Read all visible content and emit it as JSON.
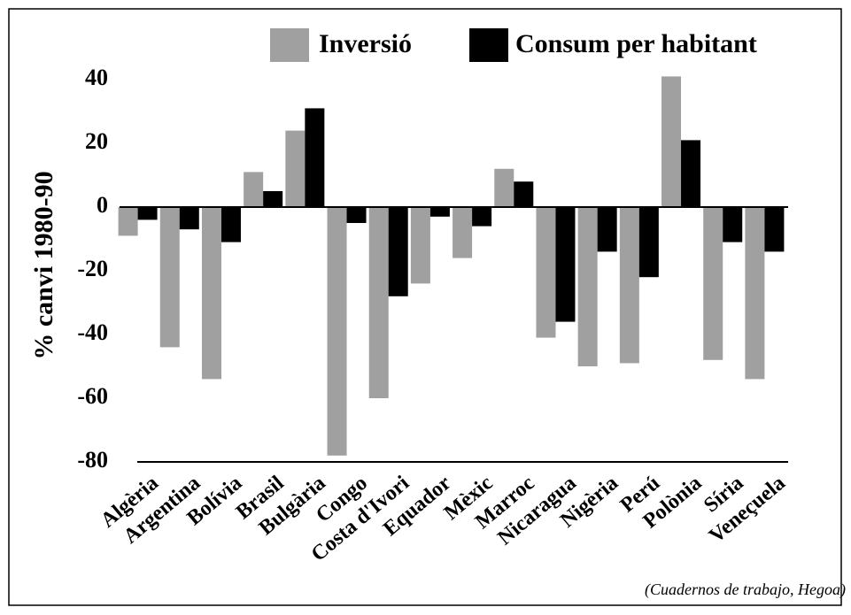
{
  "chart_data": {
    "type": "bar",
    "ylabel": "% canvi 1980-90",
    "source": "(Cuadernos de trabajo, Hegoa)",
    "categories": [
      "Algèria",
      "Argentina",
      "Bolívia",
      "Brasil",
      "Bulgària",
      "Congo",
      "Costa d'Ivori",
      "Equador",
      "Mèxic",
      "Marroc",
      "Nicaragua",
      "Nigèria",
      "Perú",
      "Polònia",
      "Síria",
      "Veneçuela"
    ],
    "series": [
      {
        "name": "Inversió",
        "color": "#a0a0a0",
        "values": [
          -9,
          -44,
          -54,
          11,
          24,
          -78,
          -60,
          -24,
          -16,
          12,
          -41,
          -50,
          -49,
          41,
          -48,
          -54
        ]
      },
      {
        "name": "Consum per habitant",
        "color": "#000000",
        "values": [
          -4,
          -7,
          -11,
          5,
          31,
          -5,
          -28,
          -3,
          -6,
          8,
          -36,
          -14,
          -22,
          21,
          -11,
          -14
        ]
      }
    ],
    "ylim": [
      -80,
      40
    ],
    "yticks": [
      -80,
      -60,
      -40,
      -20,
      0,
      20,
      40
    ]
  }
}
